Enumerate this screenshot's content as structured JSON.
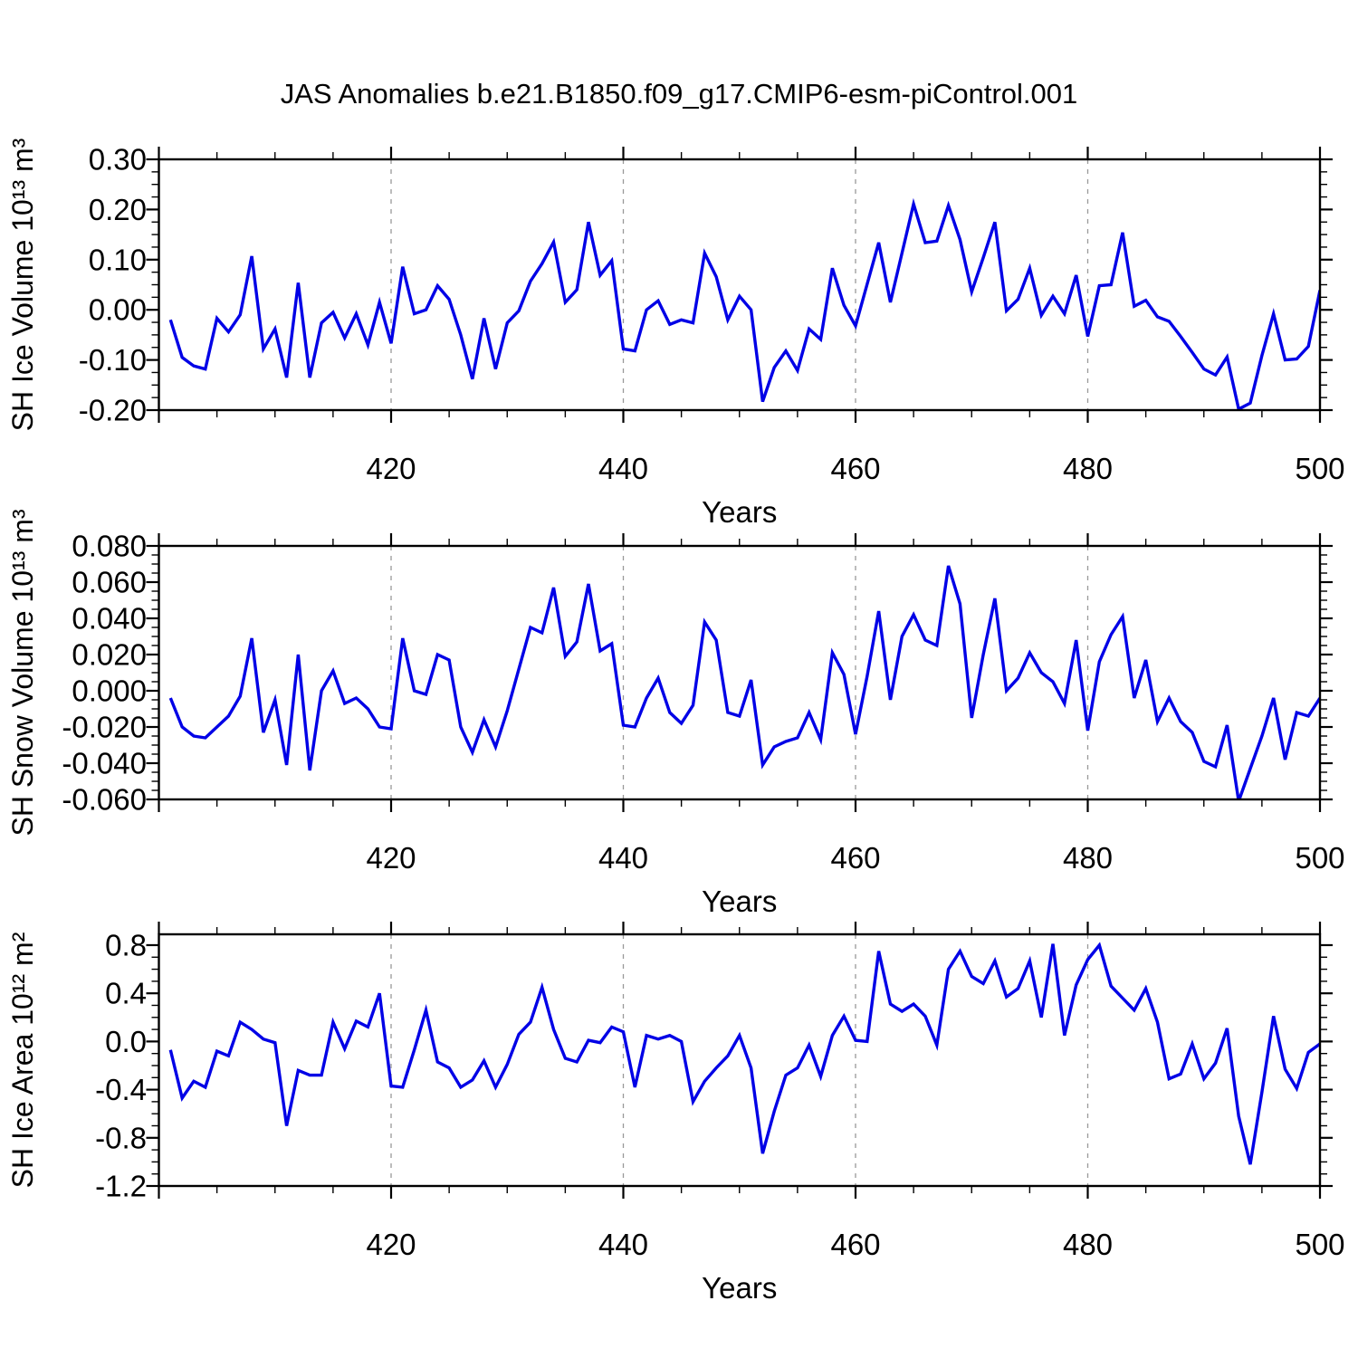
{
  "title": "JAS Anomalies b.e21.B1850.f09_g17.CMIP6-esm-piControl.001",
  "colors": {
    "line": "#0000e6",
    "frame": "#000000",
    "gridline": "#999999",
    "text": "#000000",
    "background": "#ffffff"
  },
  "x_axis": {
    "title": "Years",
    "range": [
      400,
      500
    ],
    "major_ticks": [
      400,
      420,
      440,
      460,
      480,
      500
    ],
    "labeled_ticks": [
      420,
      440,
      460,
      480,
      500
    ],
    "tick_labels": [
      "420",
      "440",
      "460",
      "480",
      "500"
    ],
    "minor_step": 5,
    "gridline_years": [
      420,
      440,
      460,
      480
    ]
  },
  "chart_data": [
    {
      "type": "line",
      "name": "sh-ice-volume",
      "ylabel": "SH Ice Volume 10¹³ m³",
      "xlabel": "Years",
      "ylim": [
        -0.2,
        0.3
      ],
      "yticks": [
        0.3,
        0.2,
        0.1,
        0.0,
        -0.1,
        -0.2
      ],
      "ytick_labels": [
        "0.30",
        "0.20",
        "0.10",
        "0.00",
        "-0.10",
        "-0.20"
      ],
      "y_minor_step": 0.025,
      "x_start": 401,
      "values": [
        -0.02,
        -0.095,
        -0.112,
        -0.118,
        -0.017,
        -0.044,
        -0.01,
        0.107,
        -0.078,
        -0.038,
        -0.135,
        0.054,
        -0.135,
        -0.026,
        -0.005,
        -0.056,
        -0.008,
        -0.07,
        0.015,
        -0.067,
        0.086,
        -0.008,
        0.0,
        0.048,
        0.021,
        -0.05,
        -0.138,
        -0.017,
        -0.118,
        -0.026,
        -0.002,
        0.057,
        0.092,
        0.135,
        0.015,
        0.04,
        0.175,
        0.069,
        0.098,
        -0.078,
        -0.082,
        0.0,
        0.018,
        -0.029,
        -0.02,
        -0.026,
        0.113,
        0.066,
        -0.02,
        0.027,
        0.0,
        -0.183,
        -0.115,
        -0.082,
        -0.121,
        -0.038,
        -0.059,
        0.083,
        0.009,
        -0.032,
        0.051,
        0.134,
        0.015,
        0.113,
        0.211,
        0.134,
        0.137,
        0.208,
        0.14,
        0.036,
        0.104,
        0.175,
        -0.002,
        0.021,
        0.083,
        -0.011,
        0.027,
        -0.008,
        0.069,
        -0.053,
        0.048,
        0.05,
        0.154,
        0.007,
        0.019,
        -0.014,
        -0.023,
        -0.053,
        -0.085,
        -0.118,
        -0.13,
        -0.094,
        -0.198,
        -0.186,
        -0.091,
        -0.008,
        -0.1,
        -0.098,
        -0.073,
        0.039
      ]
    },
    {
      "type": "line",
      "name": "sh-snow-volume",
      "ylabel": "SH Snow Volume 10¹³ m³",
      "xlabel": "Years",
      "ylim": [
        -0.06,
        0.08
      ],
      "yticks": [
        0.08,
        0.06,
        0.04,
        0.02,
        0.0,
        -0.02,
        -0.04,
        -0.06
      ],
      "ytick_labels": [
        "0.080",
        "0.060",
        "0.040",
        "0.020",
        "0.000",
        "-0.020",
        "-0.040",
        "-0.060"
      ],
      "y_minor_step": 0.005,
      "x_start": 401,
      "values": [
        -0.004,
        -0.02,
        -0.025,
        -0.026,
        -0.02,
        -0.014,
        -0.003,
        0.029,
        -0.023,
        -0.005,
        -0.041,
        0.02,
        -0.044,
        0.0,
        0.011,
        -0.007,
        -0.004,
        -0.01,
        -0.02,
        -0.021,
        0.029,
        0.0,
        -0.002,
        0.02,
        0.017,
        -0.02,
        -0.034,
        -0.016,
        -0.031,
        -0.011,
        0.012,
        0.035,
        0.032,
        0.057,
        0.019,
        0.027,
        0.059,
        0.022,
        0.026,
        -0.019,
        -0.02,
        -0.004,
        0.007,
        -0.012,
        -0.018,
        -0.008,
        0.038,
        0.028,
        -0.012,
        -0.014,
        0.006,
        -0.041,
        -0.031,
        -0.028,
        -0.026,
        -0.012,
        -0.027,
        0.021,
        0.009,
        -0.024,
        0.008,
        0.044,
        -0.005,
        0.03,
        0.042,
        0.028,
        0.025,
        0.069,
        0.048,
        -0.015,
        0.02,
        0.051,
        0.0,
        0.007,
        0.021,
        0.01,
        0.005,
        -0.007,
        0.028,
        -0.022,
        0.016,
        0.031,
        0.041,
        -0.004,
        0.017,
        -0.017,
        -0.004,
        -0.017,
        -0.023,
        -0.039,
        -0.042,
        -0.019,
        -0.061,
        -0.043,
        -0.025,
        -0.004,
        -0.038,
        -0.012,
        -0.014,
        -0.004
      ]
    },
    {
      "type": "line",
      "name": "sh-ice-area",
      "ylabel": "SH Ice Area 10¹² m²",
      "xlabel": "Years",
      "ylim": [
        -1.2,
        0.89
      ],
      "yticks": [
        0.8,
        0.4,
        0.0,
        -0.4,
        -0.8,
        -1.2
      ],
      "ytick_labels": [
        "0.8",
        "0.4",
        "0.0",
        "-0.4",
        "-0.8",
        "-1.2"
      ],
      "y_minor_step": 0.1,
      "x_start": 401,
      "values": [
        -0.07,
        -0.47,
        -0.33,
        -0.38,
        -0.08,
        -0.12,
        0.16,
        0.1,
        0.02,
        -0.01,
        -0.7,
        -0.24,
        -0.28,
        -0.28,
        0.16,
        -0.06,
        0.17,
        0.12,
        0.4,
        -0.37,
        -0.38,
        -0.07,
        0.26,
        -0.17,
        -0.22,
        -0.38,
        -0.32,
        -0.16,
        -0.38,
        -0.19,
        0.06,
        0.16,
        0.45,
        0.1,
        -0.14,
        -0.17,
        0.01,
        -0.01,
        0.12,
        0.08,
        -0.38,
        0.05,
        0.02,
        0.05,
        0.0,
        -0.5,
        -0.33,
        -0.22,
        -0.12,
        0.05,
        -0.22,
        -0.93,
        -0.58,
        -0.28,
        -0.22,
        -0.03,
        -0.29,
        0.05,
        0.21,
        0.01,
        0.0,
        0.75,
        0.31,
        0.25,
        0.31,
        0.21,
        -0.03,
        0.6,
        0.75,
        0.54,
        0.48,
        0.67,
        0.37,
        0.44,
        0.67,
        0.2,
        0.81,
        0.05,
        0.47,
        0.68,
        0.8,
        0.46,
        0.36,
        0.26,
        0.44,
        0.16,
        -0.31,
        -0.27,
        -0.02,
        -0.31,
        -0.18,
        0.11,
        -0.62,
        -1.02,
        -0.42,
        0.21,
        -0.23,
        -0.39,
        -0.09,
        -0.02
      ]
    }
  ]
}
